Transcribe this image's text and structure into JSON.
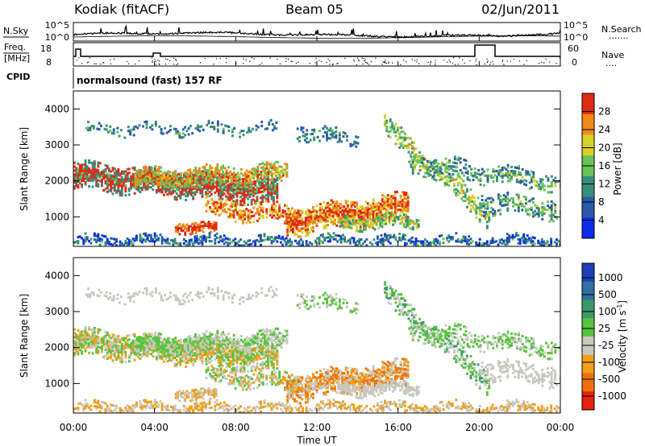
{
  "header": {
    "station": "Kodiak (fitACF)",
    "beam": "Beam 05",
    "date": "02/Jun/2011"
  },
  "noise_panel": {
    "left_label": "N.Sky",
    "right_label": "N.Search",
    "right_dots": ".......",
    "left_ticks": [
      "10^5",
      "10^0"
    ],
    "right_ticks": [
      "10^5",
      "10^0"
    ]
  },
  "freq_panel": {
    "left_label_line1": "Freq.",
    "left_label_line2": "[MHz]",
    "right_label": "Nave",
    "right_dots": "....",
    "left_ticks": [
      "18",
      "8"
    ],
    "right_ticks": [
      "60",
      "0"
    ]
  },
  "cpid": {
    "label": "CPID",
    "value": "normalsound (fast) 157 RF"
  },
  "x_axis": {
    "label": "Time UT",
    "ticks": [
      "00:00",
      "04:00",
      "08:00",
      "12:00",
      "16:00",
      "20:00",
      "00:00"
    ]
  },
  "chart_data": [
    {
      "type": "heatmap",
      "name": "power",
      "ylabel": "Slant Range [km]",
      "yticks": [
        "1000",
        "2000",
        "3000",
        "4000"
      ],
      "ylim": [
        180,
        4500
      ],
      "xlim_hours": [
        0,
        24
      ],
      "colorbar_label": "Power [dB]",
      "colorbar_ticks": [
        "4",
        "8",
        "12",
        "16",
        "20",
        "24",
        "28"
      ],
      "colors": [
        "#0a2bf0",
        "#2a5aa8",
        "#3a8f7a",
        "#6ac25a",
        "#d8d02a",
        "#f08a1a",
        "#e02a14"
      ]
    },
    {
      "type": "heatmap",
      "name": "velocity",
      "ylabel": "Slant Range [km]",
      "yticks": [
        "1000",
        "2000",
        "3000",
        "4000"
      ],
      "ylim": [
        180,
        4500
      ],
      "xlim_hours": [
        0,
        24
      ],
      "colorbar_label": "Velocity [m s^-1]",
      "colorbar_ticks": [
        "1000",
        "500",
        "100",
        "25",
        "-25",
        "-100",
        "-500",
        "-1000"
      ],
      "colors": [
        "#1f3fb8",
        "#2f72a0",
        "#3c9a6a",
        "#56c43c",
        "#c8c8c0",
        "#f0a01a",
        "#f07010",
        "#e82010"
      ]
    }
  ]
}
